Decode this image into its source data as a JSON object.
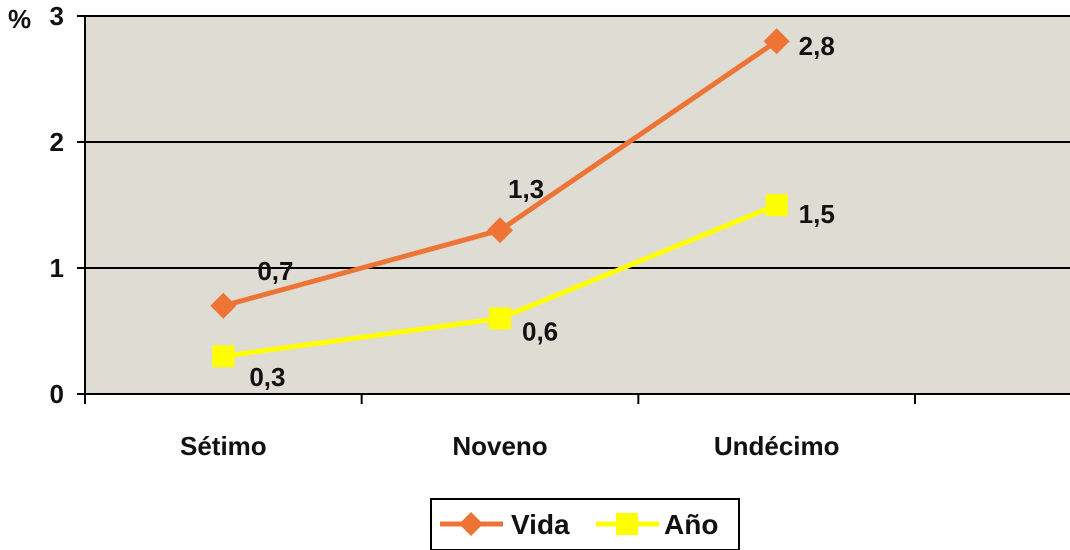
{
  "chart_data": {
    "type": "line",
    "categories": [
      "Sétimo",
      "Noveno",
      "Undécimo"
    ],
    "series": [
      {
        "name": "Vida",
        "values": [
          0.7,
          1.3,
          2.8
        ],
        "labels": [
          "0,7",
          "1,3",
          "2,8"
        ],
        "color": "#ED7434",
        "marker": "diamond"
      },
      {
        "name": "Año",
        "values": [
          0.3,
          0.6,
          1.5
        ],
        "labels": [
          "0,3",
          "0,6",
          "1,5"
        ],
        "color": "#FFFF00",
        "marker": "square"
      }
    ],
    "y_unit": "%",
    "ylim": [
      0,
      3
    ],
    "yticks": [
      0,
      1,
      2,
      3
    ],
    "ytick_labels": [
      "0",
      "1",
      "2",
      "3"
    ],
    "plot_background": "#DFDCD3",
    "grid": true,
    "legend_position": "bottom"
  }
}
